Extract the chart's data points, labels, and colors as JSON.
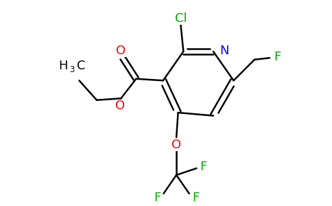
{
  "bg_color": "#ffffff",
  "bond_color": "#000000",
  "bond_width": 1.8,
  "colors": {
    "N": "#0000ff",
    "O": "#ff0000",
    "F": "#00aa00",
    "Cl": "#00aa00",
    "C": "#000000"
  },
  "figsize": [
    4.84,
    3.0
  ],
  "dpi": 100,
  "xlim": [
    0,
    9.68
  ],
  "ylim": [
    0,
    6.0
  ]
}
